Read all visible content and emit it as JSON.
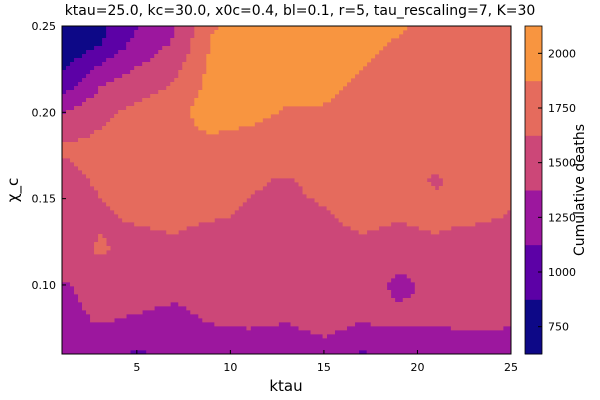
{
  "chart_data": {
    "type": "heatmap",
    "subtype": "filled-contour",
    "title": "ktau=25.0, kc=30.0, x0c=0.4, bl=0.1, r=5, tau_rescaling=7, K=30",
    "xlabel": "ktau",
    "ylabel": "χ_c",
    "colorbar_label": "Cumulative deaths",
    "xlim": [
      1,
      25
    ],
    "ylim": [
      0.06,
      0.25
    ],
    "xticks": [
      5,
      10,
      15,
      20,
      25
    ],
    "yticks": [
      0.1,
      0.15,
      0.2,
      0.25
    ],
    "xtick_labels": [
      "5",
      "10",
      "15",
      "20",
      "25"
    ],
    "ytick_labels": [
      "0.10",
      "0.15",
      "0.20",
      "0.25"
    ],
    "colorbar_ticks": [
      750,
      1000,
      1250,
      1500,
      1750,
      2000
    ],
    "colorbar_tick_labels": [
      "750",
      "1000",
      "1250",
      "1500",
      "1750",
      "2000"
    ],
    "levels": [
      625,
      875,
      1125,
      1375,
      1625,
      1875,
      2125
    ],
    "level_colors": [
      "#0d0887",
      "#5c01a6",
      "#9c179e",
      "#cc4778",
      "#e56b5d",
      "#f89540",
      "#f0f921"
    ],
    "grid": false,
    "x": [
      1,
      3,
      5,
      7,
      9,
      11,
      13,
      15,
      17,
      19,
      21,
      23,
      25
    ],
    "y": [
      0.06,
      0.08,
      0.1,
      0.12,
      0.14,
      0.16,
      0.18,
      0.2,
      0.22,
      0.24,
      0.25
    ],
    "z": [
      [
        1250,
        1150,
        1100,
        1150,
        1200,
        1150,
        1150,
        1250,
        1100,
        1150,
        1200,
        1150,
        1250
      ],
      [
        1300,
        1400,
        1350,
        1300,
        1400,
        1450,
        1400,
        1500,
        1400,
        1450,
        1400,
        1500,
        1400
      ],
      [
        1350,
        1450,
        1500,
        1450,
        1500,
        1550,
        1550,
        1450,
        1550,
        1300,
        1450,
        1500,
        1400
      ],
      [
        1500,
        1650,
        1550,
        1550,
        1450,
        1500,
        1500,
        1500,
        1550,
        1500,
        1550,
        1400,
        1500
      ],
      [
        1450,
        1600,
        1650,
        1700,
        1650,
        1600,
        1550,
        1600,
        1700,
        1650,
        1700,
        1700,
        1600
      ],
      [
        1550,
        1650,
        1700,
        1700,
        1700,
        1650,
        1600,
        1700,
        1700,
        1700,
        1600,
        1700,
        1700
      ],
      [
        1650,
        1700,
        1750,
        1800,
        1800,
        1750,
        1750,
        1750,
        1750,
        1750,
        1700,
        1650,
        1700
      ],
      [
        1350,
        1550,
        1700,
        1800,
        2000,
        1950,
        1850,
        1850,
        1800,
        1750,
        1700,
        1750,
        1700
      ],
      [
        900,
        1300,
        1450,
        1600,
        1950,
        2000,
        2000,
        1950,
        1850,
        1750,
        1800,
        1750,
        1700
      ],
      [
        650,
        850,
        1200,
        1400,
        1900,
        2000,
        2000,
        1950,
        1950,
        1850,
        1750,
        1800,
        1750
      ],
      [
        600,
        800,
        1100,
        1350,
        1850,
        2000,
        2000,
        2000,
        1950,
        1900,
        1800,
        1750,
        1800
      ]
    ]
  }
}
